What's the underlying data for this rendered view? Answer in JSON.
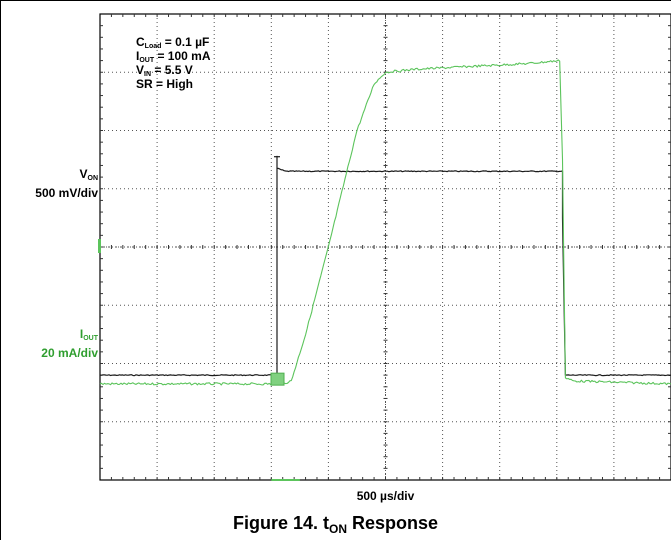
{
  "chart_data": {
    "type": "line",
    "title": "Figure 14. t",
    "title_sub": "ON",
    "title_suffix": " Response",
    "xlabel": "500 µs/div",
    "grid": true,
    "divisions": {
      "x": 10,
      "y": 8
    },
    "conditions": [
      {
        "main": "C",
        "sub": "Load",
        "rest": " = 0.1 µF"
      },
      {
        "main": "I",
        "sub": "OUT",
        "rest": " = 100 mA"
      },
      {
        "main": "V",
        "sub": "IN",
        "rest": " = 5.5 V"
      },
      {
        "main": "SR = High",
        "sub": "",
        "rest": ""
      }
    ],
    "series": [
      {
        "name_main": "V",
        "name_sub": "ON",
        "scale": "500 mV/div",
        "color": "#1a1a1a",
        "x": [
          0,
          3.1,
          3.1,
          3.1,
          3.25,
          8.1,
          8.1,
          8.15,
          10
        ],
        "y": [
          -2.2,
          -2.2,
          1.55,
          1.35,
          1.3,
          1.3,
          0.5,
          -2.2,
          -2.2
        ]
      },
      {
        "name_main": "I",
        "name_sub": "OUT",
        "scale": "20 mA/div",
        "color": "#5cc45c",
        "x": [
          0,
          3.2,
          3.35,
          3.6,
          4.0,
          4.5,
          4.8,
          5.0,
          5.5,
          6.5,
          7.5,
          8.05,
          8.1,
          8.15,
          8.3,
          10
        ],
        "y": [
          -2.35,
          -2.35,
          -2.3,
          -1.5,
          0.0,
          2.0,
          2.8,
          3.0,
          3.05,
          3.1,
          3.15,
          3.2,
          1.5,
          -2.25,
          -2.3,
          -2.35
        ]
      }
    ]
  }
}
